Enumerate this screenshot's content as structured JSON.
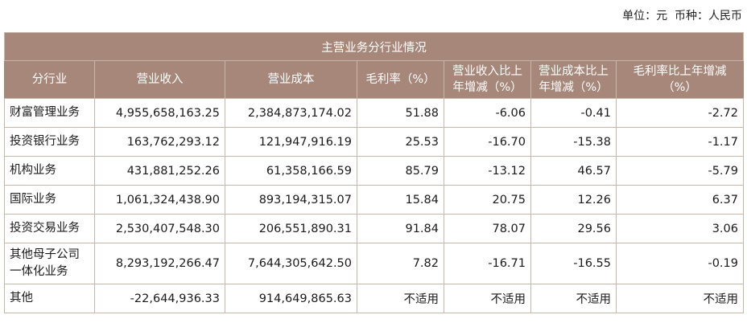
{
  "unit_line": "单位：元  币种：人民币",
  "table": {
    "title": "主营业务分行业情况",
    "headers": [
      "分行业",
      "营业收入",
      "营业成本",
      "毛利率（%）",
      "营业收入比上年增减（%）",
      "营业成本比上年增减（%）",
      "毛利率比上年增减（%）"
    ],
    "rows": [
      [
        "财富管理业务",
        "4,955,658,163.25",
        "2,384,873,174.02",
        "51.88",
        "-6.06",
        "-0.41",
        "-2.72"
      ],
      [
        "投资银行业务",
        "163,762,293.12",
        "121,947,916.19",
        "25.53",
        "-16.70",
        "-15.38",
        "-1.17"
      ],
      [
        "机构业务",
        "431,881,252.26",
        "61,358,166.59",
        "85.79",
        "-13.12",
        "46.57",
        "-5.79"
      ],
      [
        "国际业务",
        "1,061,324,438.90",
        "893,194,315.07",
        "15.84",
        "20.75",
        "12.26",
        "6.37"
      ],
      [
        "投资交易业务",
        "2,530,407,548.30",
        "206,551,890.31",
        "91.84",
        "78.07",
        "29.56",
        "3.06"
      ],
      [
        "其他母子公司一体化业务",
        "8,293,192,266.47",
        "7,644,305,642.50",
        "7.82",
        "-16.71",
        "-16.55",
        "-0.19"
      ],
      [
        "其他",
        "-22,644,936.33",
        "914,649,865.63",
        "不适用",
        "不适用",
        "不适用",
        "不适用"
      ]
    ]
  }
}
